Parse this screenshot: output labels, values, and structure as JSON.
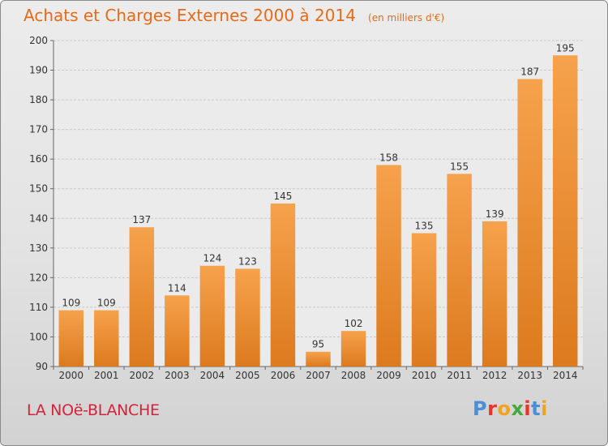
{
  "header": {
    "title": "Achats et Charges Externes 2000 à 2014",
    "unit": "(en milliers d'€)"
  },
  "footer": {
    "city": "LA NOë-BLANCHE",
    "logo_text": "Proxiti"
  },
  "colors": {
    "title": "#e46b1a",
    "city": "#d2233c",
    "bar_light": "#f6a24c",
    "bar_dark": "#dc7a1e"
  },
  "chart_data": {
    "type": "bar",
    "categories": [
      "2000",
      "2001",
      "2002",
      "2003",
      "2004",
      "2005",
      "2006",
      "2007",
      "2008",
      "2009",
      "2010",
      "2011",
      "2012",
      "2013",
      "2014"
    ],
    "values": [
      109,
      109,
      137,
      114,
      124,
      123,
      145,
      95,
      102,
      158,
      135,
      155,
      139,
      187,
      195
    ],
    "ylim": [
      90,
      200
    ],
    "yticks": [
      90,
      100,
      110,
      120,
      130,
      140,
      150,
      160,
      170,
      180,
      190,
      200
    ],
    "grid": true
  }
}
